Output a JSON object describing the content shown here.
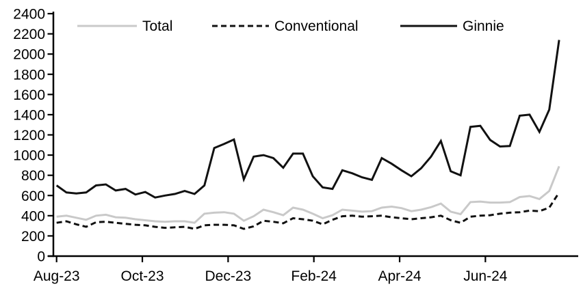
{
  "chart_data": {
    "type": "line",
    "title": "",
    "xlabel": "",
    "ylabel": "",
    "grid": false,
    "legend_position": "top",
    "x_frequency": "weekly",
    "x_tick_labels": [
      "Aug-23",
      "Oct-23",
      "Dec-23",
      "Feb-24",
      "Apr-24",
      "Jun-24"
    ],
    "y_tick_labels": [
      "0",
      "200",
      "400",
      "600",
      "800",
      "1000",
      "1200",
      "1400",
      "1600",
      "1800",
      "2000",
      "2200",
      "2400"
    ],
    "ylim": [
      0,
      2400
    ],
    "y_tick_step": 200,
    "series": [
      {
        "name": "Total",
        "color": "#c9c9c9",
        "dash": "solid",
        "values": [
          390,
          400,
          380,
          360,
          400,
          410,
          385,
          380,
          365,
          355,
          345,
          340,
          345,
          345,
          330,
          420,
          430,
          435,
          420,
          350,
          395,
          460,
          435,
          405,
          480,
          460,
          420,
          375,
          405,
          460,
          450,
          440,
          445,
          480,
          490,
          475,
          445,
          460,
          485,
          520,
          440,
          415,
          535,
          540,
          530,
          530,
          535,
          585,
          595,
          565,
          645,
          890
        ]
      },
      {
        "name": "Conventional",
        "color": "#111111",
        "dash": "dashed",
        "values": [
          330,
          345,
          315,
          290,
          335,
          340,
          330,
          320,
          310,
          305,
          290,
          280,
          285,
          290,
          270,
          305,
          310,
          310,
          305,
          270,
          295,
          350,
          340,
          325,
          375,
          365,
          350,
          315,
          360,
          395,
          400,
          390,
          395,
          400,
          385,
          375,
          365,
          375,
          385,
          400,
          355,
          330,
          390,
          400,
          405,
          420,
          430,
          435,
          450,
          445,
          480,
          630
        ]
      },
      {
        "name": "Ginnie",
        "color": "#111111",
        "dash": "solid",
        "values": [
          700,
          630,
          620,
          630,
          700,
          710,
          650,
          665,
          610,
          635,
          580,
          600,
          615,
          645,
          615,
          700,
          1070,
          1110,
          1155,
          760,
          985,
          1000,
          970,
          875,
          1015,
          1015,
          790,
          680,
          665,
          850,
          820,
          780,
          755,
          970,
          915,
          850,
          790,
          870,
          985,
          1140,
          840,
          800,
          1280,
          1290,
          1150,
          1085,
          1090,
          1390,
          1400,
          1230,
          1450,
          2140
        ]
      }
    ]
  }
}
